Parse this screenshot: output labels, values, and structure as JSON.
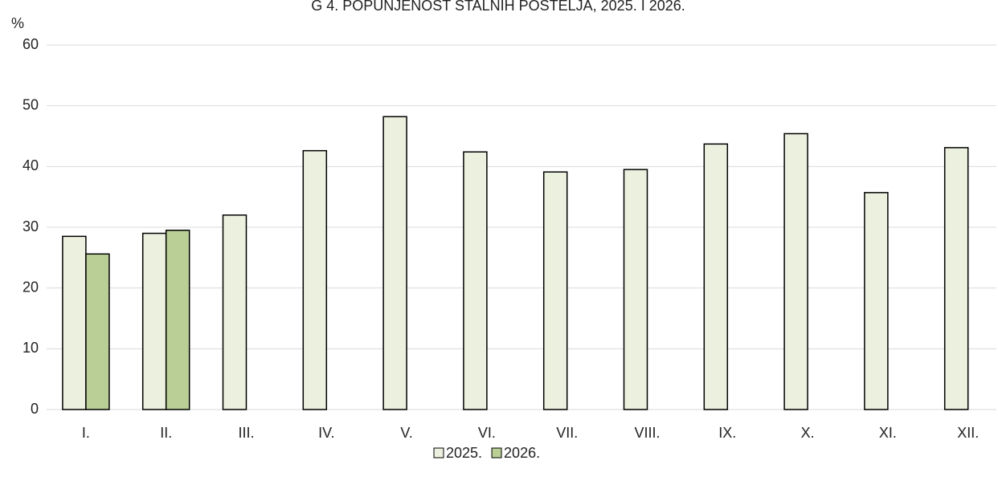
{
  "chart_data": {
    "type": "bar",
    "title": "G 4. POPUNJENOST STALNIH POSTELJA, 2025. I 2026.",
    "y_label": "%",
    "categories": [
      "I.",
      "II.",
      "III.",
      "IV.",
      "V.",
      "VI.",
      "VII.",
      "VIII.",
      "IX.",
      "X.",
      "XI.",
      "XII."
    ],
    "series": [
      {
        "name": "2025.",
        "color": "#ebf1de",
        "values": [
          28.5,
          29,
          32,
          42.6,
          48.2,
          42.4,
          39.1,
          39.5,
          43.7,
          45.4,
          35.7,
          43.1
        ]
      },
      {
        "name": "2026.",
        "color": "#b9cf96",
        "values": [
          25.6,
          29.5,
          null,
          null,
          null,
          null,
          null,
          null,
          null,
          null,
          null,
          null
        ]
      }
    ],
    "ylim": [
      0,
      60
    ],
    "yticks": [
      0,
      10,
      20,
      30,
      40,
      50,
      60
    ],
    "grid": true,
    "legend": "bottom"
  }
}
